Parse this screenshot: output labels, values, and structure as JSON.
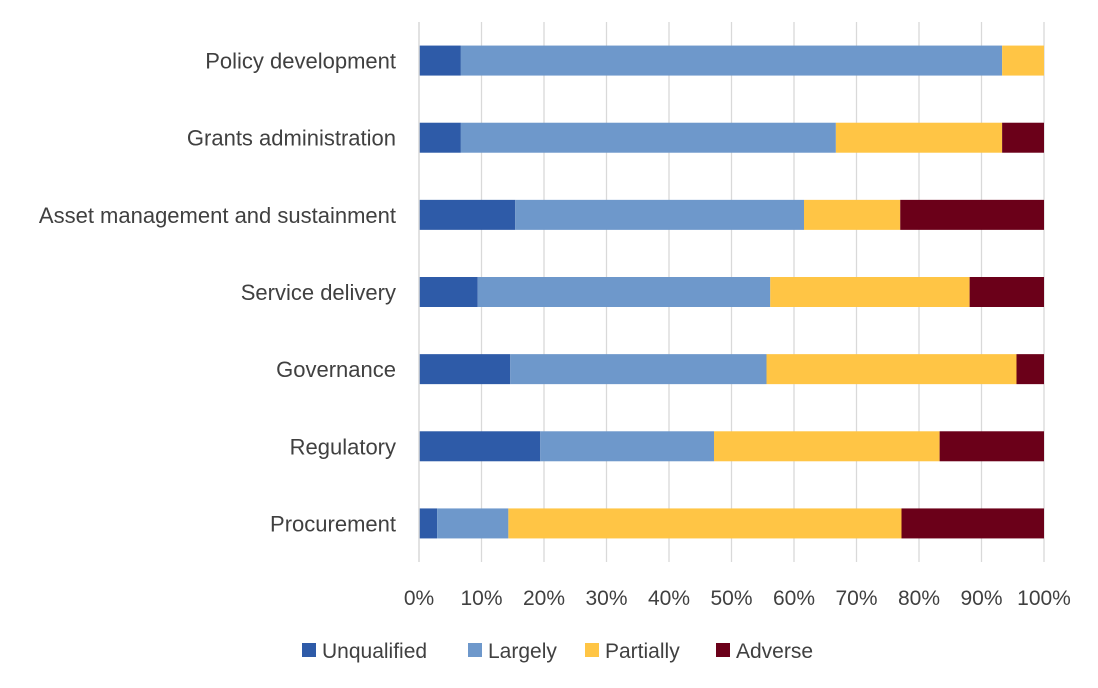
{
  "chart_data": {
    "type": "bar",
    "orientation": "horizontal",
    "stacked": "percent",
    "title": "",
    "xlabel": "",
    "ylabel": "",
    "xlim": [
      0,
      100
    ],
    "x_ticks": [
      "0%",
      "10%",
      "20%",
      "30%",
      "40%",
      "50%",
      "60%",
      "70%",
      "80%",
      "90%",
      "100%"
    ],
    "grid": true,
    "legend_position": "bottom",
    "categories": [
      "Policy development",
      "Grants administration",
      "Asset management and sustainment",
      "Service delivery",
      "Governance",
      "Regulatory",
      "Procurement"
    ],
    "series": [
      {
        "name": "Unqualified",
        "color": "#2E5BA8",
        "values": [
          6.7,
          6.7,
          15.4,
          9.4,
          14.6,
          19.4,
          2.9
        ]
      },
      {
        "name": "Largely",
        "color": "#6E98CB",
        "values": [
          86.6,
          60.0,
          46.2,
          46.8,
          41.0,
          27.8,
          11.4
        ]
      },
      {
        "name": "Partially",
        "color": "#FFC545",
        "values": [
          6.7,
          26.6,
          15.4,
          31.9,
          40.0,
          36.1,
          62.9
        ]
      },
      {
        "name": "Adverse",
        "color": "#6B0019",
        "values": [
          0,
          6.7,
          23.0,
          11.9,
          4.4,
          16.7,
          22.8
        ]
      }
    ]
  }
}
